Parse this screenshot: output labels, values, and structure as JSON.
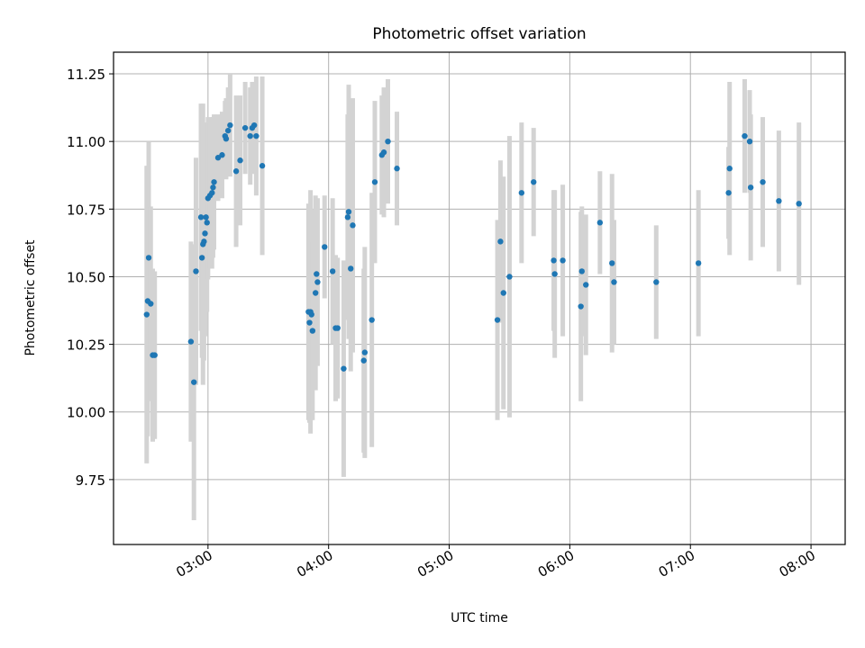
{
  "chart_data": {
    "type": "scatter",
    "title": "Photometric offset variation",
    "xlabel": "UTC time",
    "ylabel": "Photometric offset",
    "xlim": [
      "02:13",
      "08:17"
    ],
    "ylim": [
      9.51,
      11.33
    ],
    "x_ticks": [
      "03:00",
      "04:00",
      "05:00",
      "06:00",
      "07:00",
      "08:00"
    ],
    "y_ticks": [
      "9.75",
      "10.00",
      "10.25",
      "10.50",
      "10.75",
      "11.00",
      "11.25"
    ],
    "grid": true,
    "marker_color": "#1f77b4",
    "errorbar_color": "#d3d3d3",
    "series": [
      {
        "points": [
          {
            "x": "02:29:30",
            "y": 10.36,
            "err": 0.55
          },
          {
            "x": "02:30:00",
            "y": 10.41,
            "err": 0.5
          },
          {
            "x": "02:30:30",
            "y": 10.57,
            "err": 0.43
          },
          {
            "x": "02:31:30",
            "y": 10.4,
            "err": 0.36
          },
          {
            "x": "02:32:30",
            "y": 10.21,
            "err": 0.32
          },
          {
            "x": "02:33:30",
            "y": 10.21,
            "err": 0.31
          },
          {
            "x": "02:51:30",
            "y": 10.26,
            "err": 0.37
          },
          {
            "x": "02:53:00",
            "y": 10.11,
            "err": 0.51
          },
          {
            "x": "02:54:00",
            "y": 10.52,
            "err": 0.42
          },
          {
            "x": "02:56:30",
            "y": 10.72,
            "err": 0.42
          },
          {
            "x": "02:57:00",
            "y": 10.57,
            "err": 0.37
          },
          {
            "x": "02:57:30",
            "y": 10.62,
            "err": 0.52
          },
          {
            "x": "02:58:00",
            "y": 10.63,
            "err": 0.44
          },
          {
            "x": "02:58:30",
            "y": 10.66,
            "err": 0.38
          },
          {
            "x": "02:59:00",
            "y": 10.72,
            "err": 0.35
          },
          {
            "x": "02:59:30",
            "y": 10.7,
            "err": 0.33
          },
          {
            "x": "03:00:00",
            "y": 10.79,
            "err": 0.3
          },
          {
            "x": "03:01:00",
            "y": 10.8,
            "err": 0.27
          },
          {
            "x": "03:02:00",
            "y": 10.81,
            "err": 0.28
          },
          {
            "x": "03:02:30",
            "y": 10.83,
            "err": 0.26
          },
          {
            "x": "03:03:00",
            "y": 10.85,
            "err": 0.25
          },
          {
            "x": "03:05:00",
            "y": 10.94,
            "err": 0.16
          },
          {
            "x": "03:07:00",
            "y": 10.95,
            "err": 0.16
          },
          {
            "x": "03:08:30",
            "y": 11.02,
            "err": 0.13
          },
          {
            "x": "03:09:00",
            "y": 11.01,
            "err": 0.15
          },
          {
            "x": "03:10:00",
            "y": 11.04,
            "err": 0.16
          },
          {
            "x": "03:11:00",
            "y": 11.06,
            "err": 0.19
          },
          {
            "x": "03:14:00",
            "y": 10.89,
            "err": 0.28
          },
          {
            "x": "03:16:00",
            "y": 10.93,
            "err": 0.24
          },
          {
            "x": "03:18:30",
            "y": 11.05,
            "err": 0.17
          },
          {
            "x": "03:21:00",
            "y": 11.02,
            "err": 0.18
          },
          {
            "x": "03:22:00",
            "y": 11.05,
            "err": 0.17
          },
          {
            "x": "03:23:00",
            "y": 11.06,
            "err": 0.16
          },
          {
            "x": "03:24:00",
            "y": 11.02,
            "err": 0.22
          },
          {
            "x": "03:27:00",
            "y": 10.91,
            "err": 0.33
          }
        ]
      },
      {
        "points": [
          {
            "x": "03:50:00",
            "y": 10.37,
            "err": 0.4
          },
          {
            "x": "03:50:30",
            "y": 10.33,
            "err": 0.37
          },
          {
            "x": "03:51:00",
            "y": 10.37,
            "err": 0.45
          },
          {
            "x": "03:51:30",
            "y": 10.36,
            "err": 0.39
          },
          {
            "x": "03:52:00",
            "y": 10.3,
            "err": 0.33
          },
          {
            "x": "03:53:30",
            "y": 10.44,
            "err": 0.36
          },
          {
            "x": "03:54:00",
            "y": 10.51,
            "err": 0.24
          },
          {
            "x": "03:54:30",
            "y": 10.48,
            "err": 0.31
          },
          {
            "x": "03:58:00",
            "y": 10.61,
            "err": 0.19
          },
          {
            "x": "04:02:00",
            "y": 10.52,
            "err": 0.27
          },
          {
            "x": "04:03:30",
            "y": 10.31,
            "err": 0.27
          },
          {
            "x": "04:04:30",
            "y": 10.31,
            "err": 0.26
          },
          {
            "x": "04:07:30",
            "y": 10.16,
            "err": 0.4
          },
          {
            "x": "04:09:30",
            "y": 10.72,
            "err": 0.38
          },
          {
            "x": "04:10:00",
            "y": 10.74,
            "err": 0.47
          },
          {
            "x": "04:11:00",
            "y": 10.53,
            "err": 0.38
          },
          {
            "x": "04:12:00",
            "y": 10.69,
            "err": 0.47
          },
          {
            "x": "04:17:30",
            "y": 10.19,
            "err": 0.34
          },
          {
            "x": "04:18:00",
            "y": 10.22,
            "err": 0.39
          },
          {
            "x": "04:21:30",
            "y": 10.34,
            "err": 0.47
          },
          {
            "x": "04:23:00",
            "y": 10.85,
            "err": 0.3
          },
          {
            "x": "04:26:30",
            "y": 10.95,
            "err": 0.22
          },
          {
            "x": "04:27:30",
            "y": 10.96,
            "err": 0.24
          },
          {
            "x": "04:29:30",
            "y": 11.0,
            "err": 0.23
          },
          {
            "x": "04:34:00",
            "y": 10.9,
            "err": 0.21
          }
        ]
      },
      {
        "points": [
          {
            "x": "05:24:00",
            "y": 10.34,
            "err": 0.37
          },
          {
            "x": "05:25:30",
            "y": 10.63,
            "err": 0.3
          },
          {
            "x": "05:27:00",
            "y": 10.44,
            "err": 0.43
          },
          {
            "x": "05:30:00",
            "y": 10.5,
            "err": 0.52
          },
          {
            "x": "05:36:00",
            "y": 10.81,
            "err": 0.26
          },
          {
            "x": "05:42:00",
            "y": 10.85,
            "err": 0.2
          },
          {
            "x": "05:52:00",
            "y": 10.56,
            "err": 0.26
          },
          {
            "x": "05:52:30",
            "y": 10.51,
            "err": 0.31
          },
          {
            "x": "05:56:30",
            "y": 10.56,
            "err": 0.28
          },
          {
            "x": "06:05:30",
            "y": 10.39,
            "err": 0.35
          },
          {
            "x": "06:06:00",
            "y": 10.52,
            "err": 0.24
          },
          {
            "x": "06:08:00",
            "y": 10.47,
            "err": 0.26
          },
          {
            "x": "06:15:00",
            "y": 10.7,
            "err": 0.19
          },
          {
            "x": "06:21:00",
            "y": 10.55,
            "err": 0.33
          },
          {
            "x": "06:22:00",
            "y": 10.48,
            "err": 0.23
          },
          {
            "x": "06:43:00",
            "y": 10.48,
            "err": 0.21
          },
          {
            "x": "07:04:00",
            "y": 10.55,
            "err": 0.27
          }
        ]
      },
      {
        "points": [
          {
            "x": "07:19:00",
            "y": 10.81,
            "err": 0.17
          },
          {
            "x": "07:19:30",
            "y": 10.9,
            "err": 0.32
          },
          {
            "x": "07:27:00",
            "y": 11.02,
            "err": 0.21
          },
          {
            "x": "07:29:30",
            "y": 11.0,
            "err": 0.19
          },
          {
            "x": "07:30:00",
            "y": 10.83,
            "err": 0.27
          },
          {
            "x": "07:36:00",
            "y": 10.85,
            "err": 0.24
          },
          {
            "x": "07:44:00",
            "y": 10.78,
            "err": 0.26
          },
          {
            "x": "07:54:00",
            "y": 10.77,
            "err": 0.3
          }
        ]
      }
    ]
  }
}
